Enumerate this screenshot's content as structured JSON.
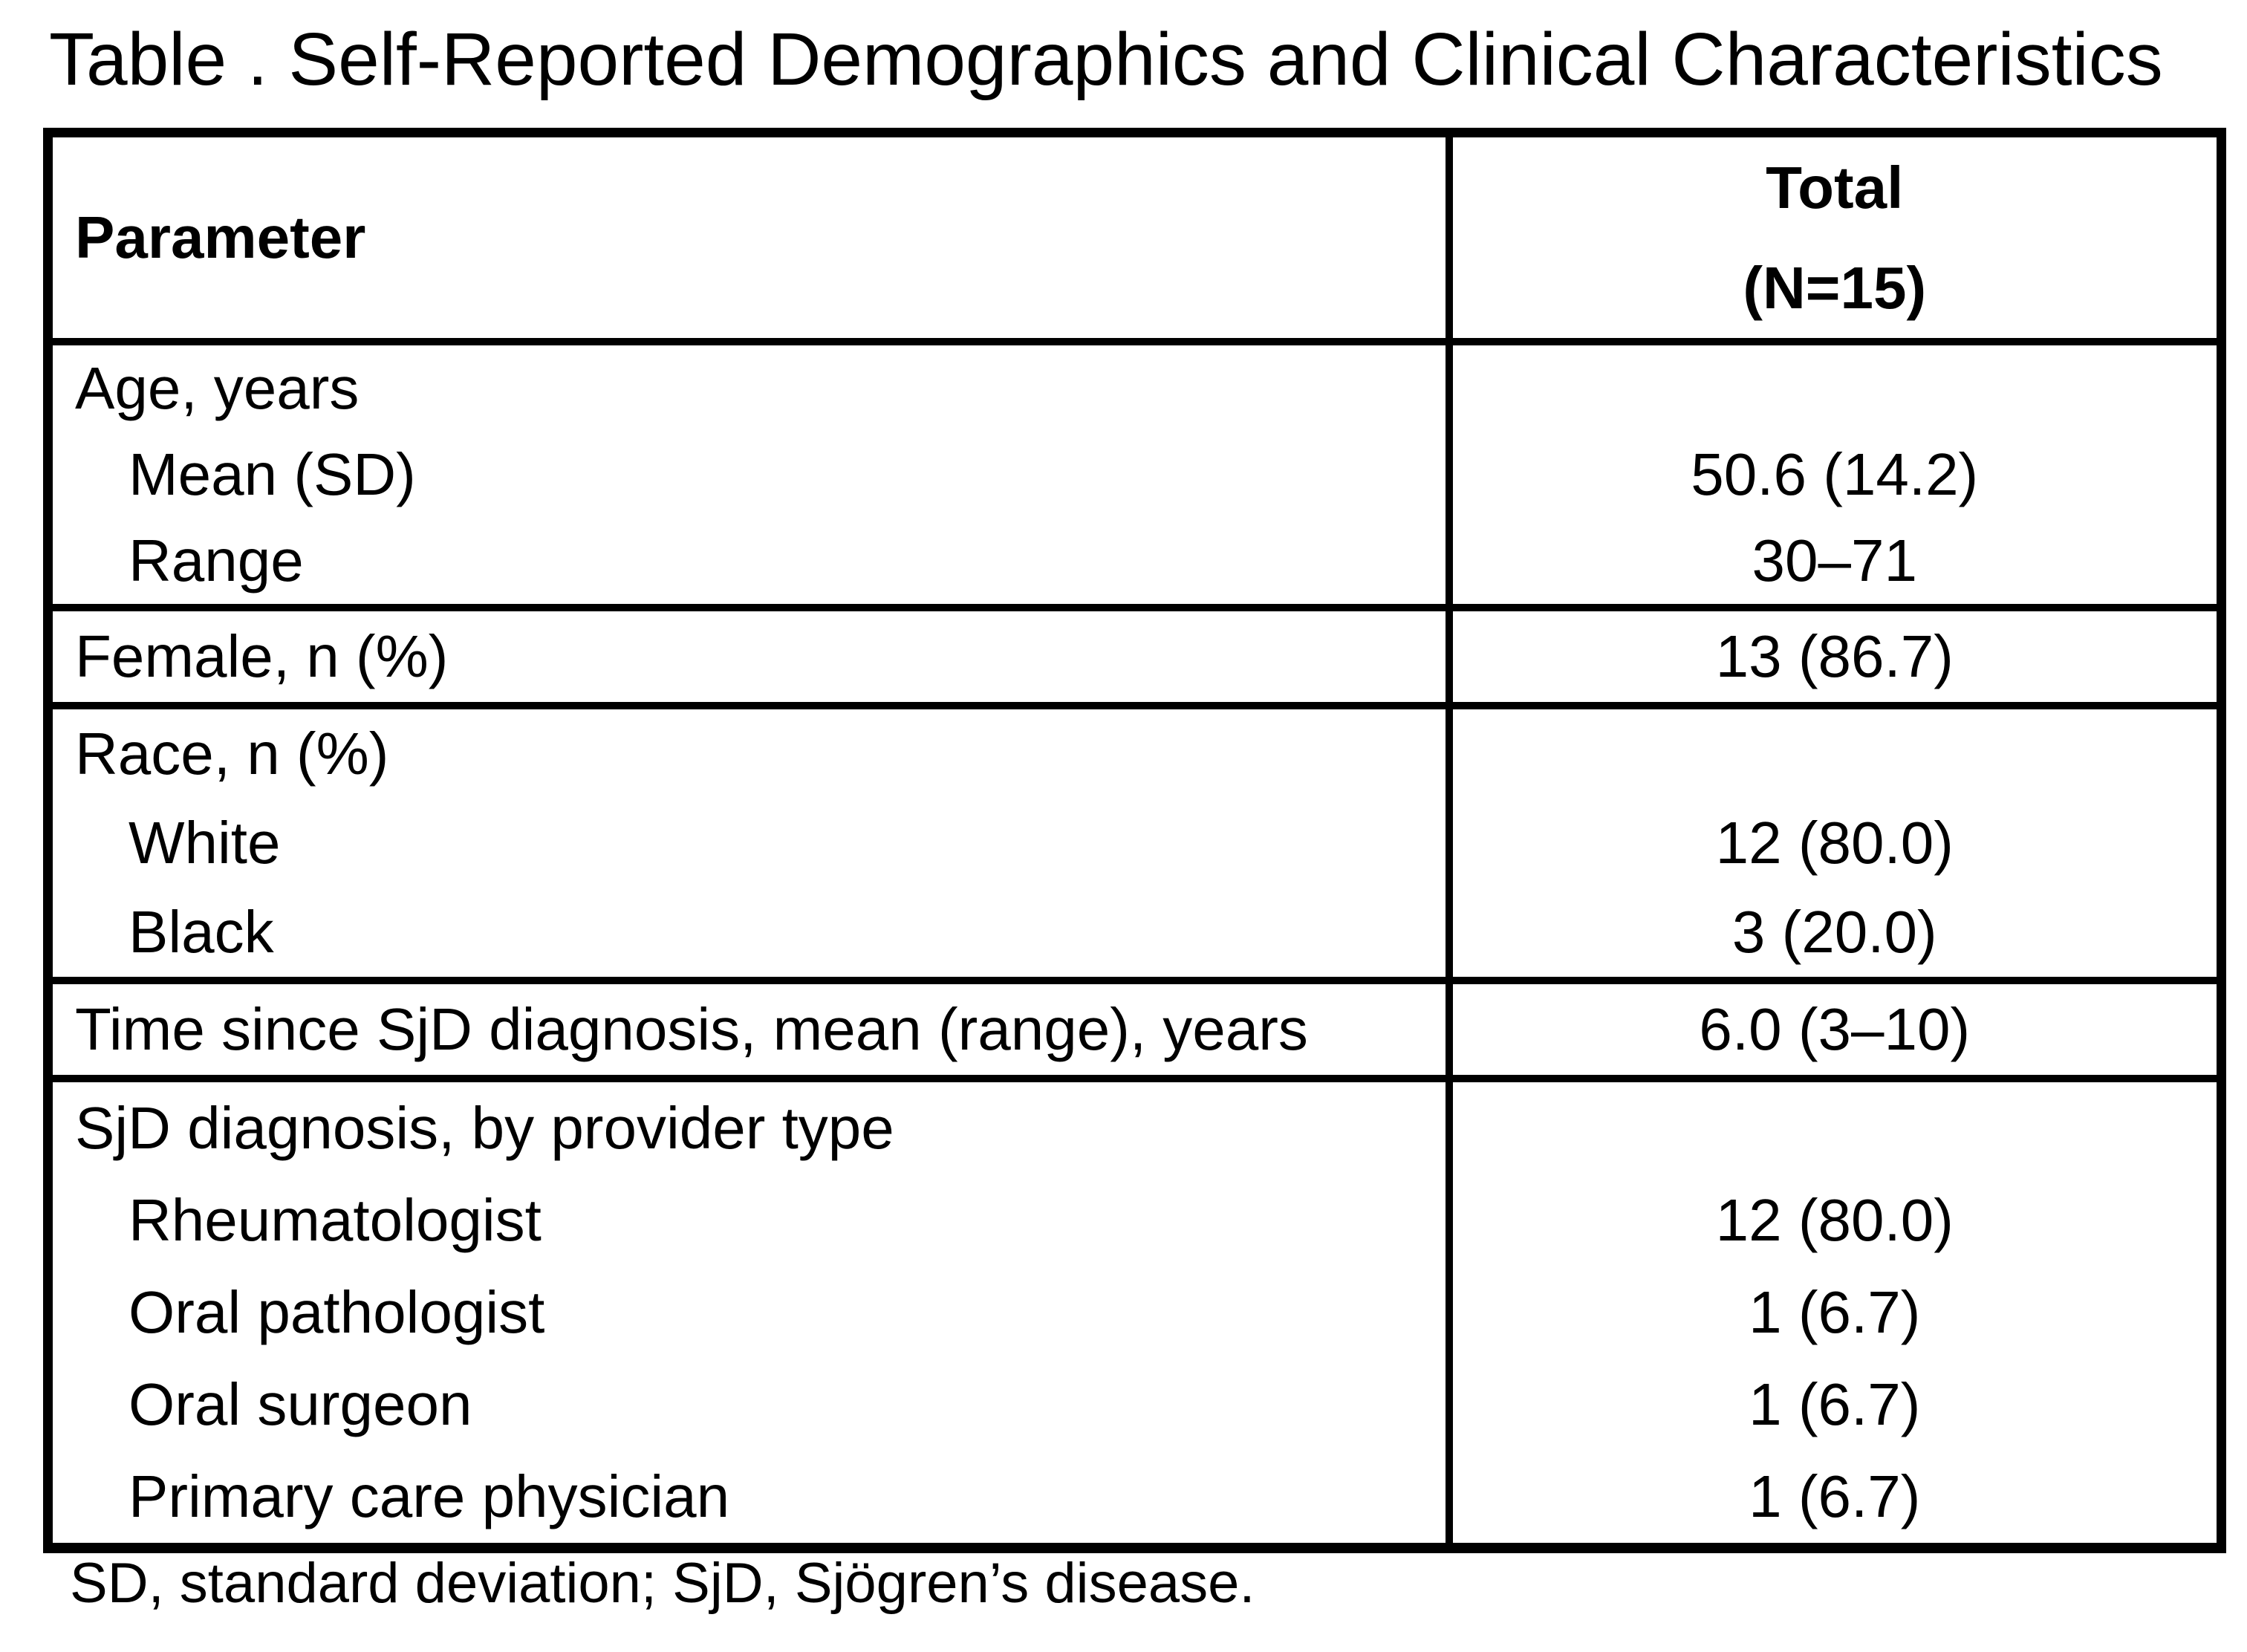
{
  "title": "Table . Self-Reported Demographics and Clinical Characteristics",
  "header": {
    "parameter": "Parameter",
    "total": "Total",
    "total_n": "(N=15)"
  },
  "rows": [
    {
      "param": [
        "Age, years",
        "Mean (SD)",
        "Range"
      ],
      "values": [
        "",
        "50.6 (14.2)",
        "30–71"
      ]
    },
    {
      "param": [
        "Female, n (%)"
      ],
      "values": [
        "13 (86.7)"
      ]
    },
    {
      "param": [
        "Race, n (%)",
        "White",
        "Black"
      ],
      "values": [
        "",
        "12 (80.0)",
        "3 (20.0)"
      ]
    },
    {
      "param": [
        "Time since SjD diagnosis, mean (range), years"
      ],
      "values": [
        "6.0 (3–10)"
      ]
    },
    {
      "param": [
        "SjD diagnosis, by provider type",
        "Rheumatologist",
        "Oral pathologist",
        "Oral surgeon",
        "Primary care physician"
      ],
      "values": [
        "",
        "12 (80.0)",
        "1 (6.7)",
        "1 (6.7)",
        "1 (6.7)"
      ]
    }
  ],
  "footnote": "SD, standard deviation; SjD, Sjögren’s disease.",
  "colors": {
    "text": "#000000",
    "border": "#000000",
    "background": "#ffffff"
  }
}
